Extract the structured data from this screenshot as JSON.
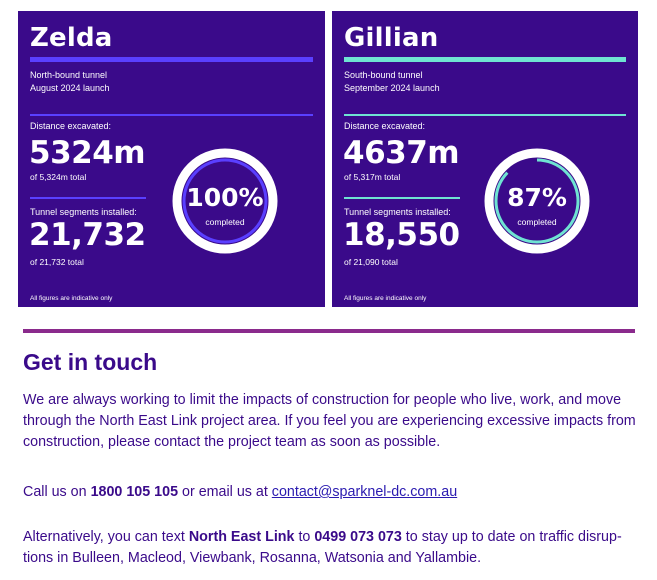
{
  "colors": {
    "card_bg": "#3a0a8a",
    "zelda_accent": "#5a3fff",
    "gillian_accent": "#6fe3d2",
    "heading": "#3a0a8a",
    "divider": "#8a2a8c",
    "link": "#2a1ab0"
  },
  "tunnels": [
    {
      "name": "Zelda",
      "direction": "North-bound tunnel",
      "launch": "August 2024 launch",
      "distance_label": "Distance excavated:",
      "distance_value": "5324m",
      "distance_total": "of 5,324m total",
      "segments_label": "Tunnel segments installed:",
      "segments_value": "21,732",
      "segments_total": "of 21,732 total",
      "percent_text": "100%",
      "percent": 100,
      "completed_label": "completed",
      "footer": "All figures are indicative only"
    },
    {
      "name": "Gillian",
      "direction": "South-bound tunnel",
      "launch": "September 2024 launch",
      "distance_label": "Distance excavated:",
      "distance_value": "4637m",
      "distance_total": "of 5,317m total",
      "segments_label": "Tunnel segments installed:",
      "segments_value": "18,550",
      "segments_total": "of 21,090 total",
      "percent_text": "87%",
      "percent": 87,
      "completed_label": "completed",
      "footer": "All figures are indicative only"
    }
  ],
  "contact": {
    "heading": "Get in touch",
    "intro": "We are always working to limit the impacts of construction for people who live, work, and move through the North East Link project area. If you feel you are experiencing excessive impacts from construction, please contact the project team as soon as possible.",
    "call_prefix": "Call us on ",
    "phone": "1800 105 105",
    "call_mid": " or email us at ",
    "email": "contact@sparknel-dc.com.au",
    "text_prefix": "Alternatively, you can text ",
    "text_keyword": "North East Link",
    "text_mid": " to ",
    "text_number": "0499 073 073",
    "text_suffix": " to stay up to date on traffic disrup­tions in Bulleen, Macleod, Viewbank, Rosanna, Watsonia and Yallambie."
  }
}
